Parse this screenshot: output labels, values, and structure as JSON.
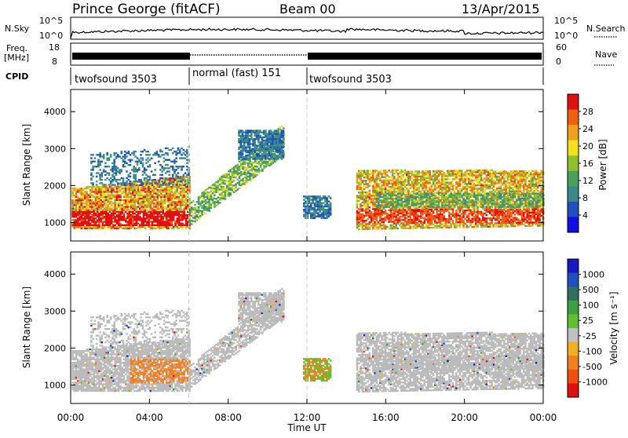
{
  "header": {
    "station": "Prince George (fitACF)",
    "beam": "Beam 00",
    "date": "13/Apr/2015"
  },
  "top_panels": {
    "nsky_label": "N.Sky",
    "nsky_ticks": [
      "10^5",
      "10^0"
    ],
    "nsearch_label": "N.Search",
    "freq_label_line1": "Freq.",
    "freq_label_line2": "[MHz]",
    "freq_ticks": [
      "18",
      "8"
    ],
    "nave_ticks": [
      "60",
      "0"
    ],
    "nave_label": "Nave",
    "cpid_label": "CPID",
    "cpid_segments": [
      {
        "label": "twofsound 3503",
        "start_hour": 0,
        "end_hour": 6
      },
      {
        "label": "normal (fast) 151",
        "start_hour": 6,
        "end_hour": 12
      },
      {
        "label": "twofsound 3503",
        "start_hour": 12,
        "end_hour": 24
      }
    ]
  },
  "colors": {
    "power": [
      "#1010e0",
      "#2050c0",
      "#3a8a8a",
      "#4aa05a",
      "#90c030",
      "#f0e020",
      "#f0a020",
      "#f06010",
      "#e01010"
    ],
    "velocity": [
      "#1818c0",
      "#2050c0",
      "#307060",
      "#40a040",
      "#60c030",
      "#c0c0c0",
      "#f0b020",
      "#f08020",
      "#f05010",
      "#e01010"
    ],
    "gray": "#bbbbbb"
  },
  "chart_data": [
    {
      "type": "heatmap",
      "panel": "power",
      "ylabel": "Slant Range [km]",
      "yticks": [
        "1000",
        "2000",
        "3000",
        "4000"
      ],
      "ylim": [
        500,
        4600
      ],
      "xlim": [
        0,
        24
      ],
      "colorbar_label": "Power [dB]",
      "colorbar_ticks": [
        "4",
        "8",
        "12",
        "16",
        "20",
        "24",
        "28"
      ],
      "colorbar_range": [
        0,
        32
      ]
    },
    {
      "type": "heatmap",
      "panel": "velocity",
      "ylabel": "Slant Range [km]",
      "yticks": [
        "1000",
        "2000",
        "3000",
        "4000"
      ],
      "ylim": [
        500,
        4600
      ],
      "xlim": [
        0,
        24
      ],
      "colorbar_label": "Velocity [m s⁻¹]",
      "colorbar_ticks": [
        "1000",
        "500",
        "100",
        "25",
        "-25",
        "-100",
        "-500",
        "-1000"
      ]
    }
  ],
  "xaxis": {
    "label": "Time UT",
    "ticks": [
      "00:00",
      "04:00",
      "08:00",
      "12:00",
      "16:00",
      "20:00",
      "00:00"
    ]
  }
}
